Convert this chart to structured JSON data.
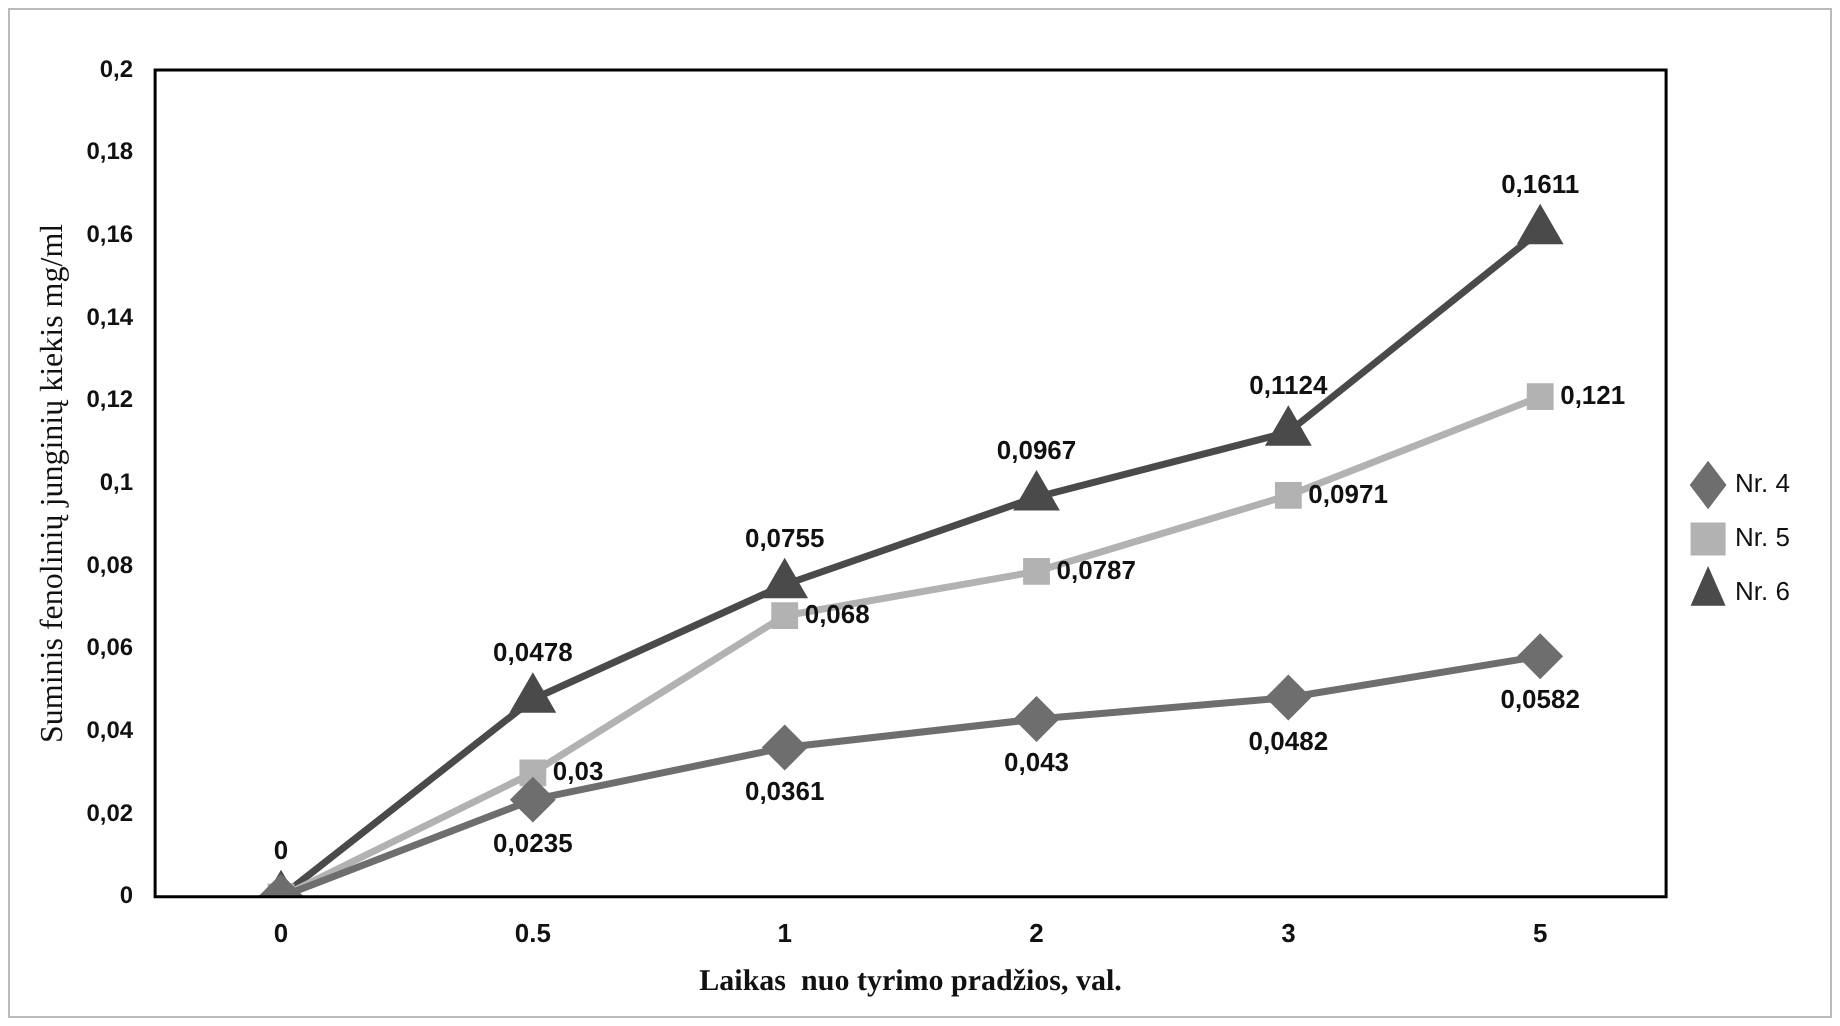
{
  "chart_data": {
    "type": "line",
    "xlabel": "Laikas  nuo tyrimo pradžios, val.",
    "ylabel": "Suminis fenolinių junginių kiekis mg/ml",
    "categories": [
      "0",
      "0.5",
      "1",
      "2",
      "3",
      "5"
    ],
    "series": [
      {
        "name": "Nr. 4",
        "color": "#6e6e6e",
        "marker": "diamond",
        "values": [
          0,
          0.0235,
          0.0361,
          0.043,
          0.0482,
          0.0582
        ],
        "value_labels": [
          null,
          "0,0235",
          "0,0361",
          "0,043",
          "0,0482",
          "0,0582"
        ]
      },
      {
        "name": "Nr. 5",
        "color": "#b2b2b2",
        "marker": "square",
        "values": [
          0,
          0.03,
          0.068,
          0.0787,
          0.0971,
          0.121
        ],
        "value_labels": [
          null,
          "0,03",
          "0,068",
          "0,0787",
          "0,0971",
          "0,121"
        ]
      },
      {
        "name": "Nr. 6",
        "color": "#4a4a4a",
        "marker": "triangle",
        "values": [
          0,
          0.0478,
          0.0755,
          0.0967,
          0.1124,
          0.1611
        ],
        "value_labels": [
          "0",
          "0,0478",
          "0,0755",
          "0,0967",
          "0,1124",
          "0,1611"
        ]
      }
    ],
    "ylim": [
      0,
      0.2
    ],
    "yticks": [
      0,
      {
        "value": 0.02,
        "label": "0,02"
      },
      {
        "value": 0.04,
        "label": "0,04"
      },
      {
        "value": 0.06,
        "label": "0,06"
      },
      {
        "value": 0.08,
        "label": "0,08"
      },
      {
        "value": 0.1,
        "label": "0,1"
      },
      {
        "value": 0.12,
        "label": "0,12"
      },
      {
        "value": 0.14,
        "label": "0,14"
      },
      {
        "value": 0.16,
        "label": "0,16"
      },
      {
        "value": 0.18,
        "label": "0,18"
      },
      {
        "value": 0.2,
        "label": "0,2"
      }
    ],
    "grid": false,
    "legend": "right",
    "line_style": "solid"
  }
}
